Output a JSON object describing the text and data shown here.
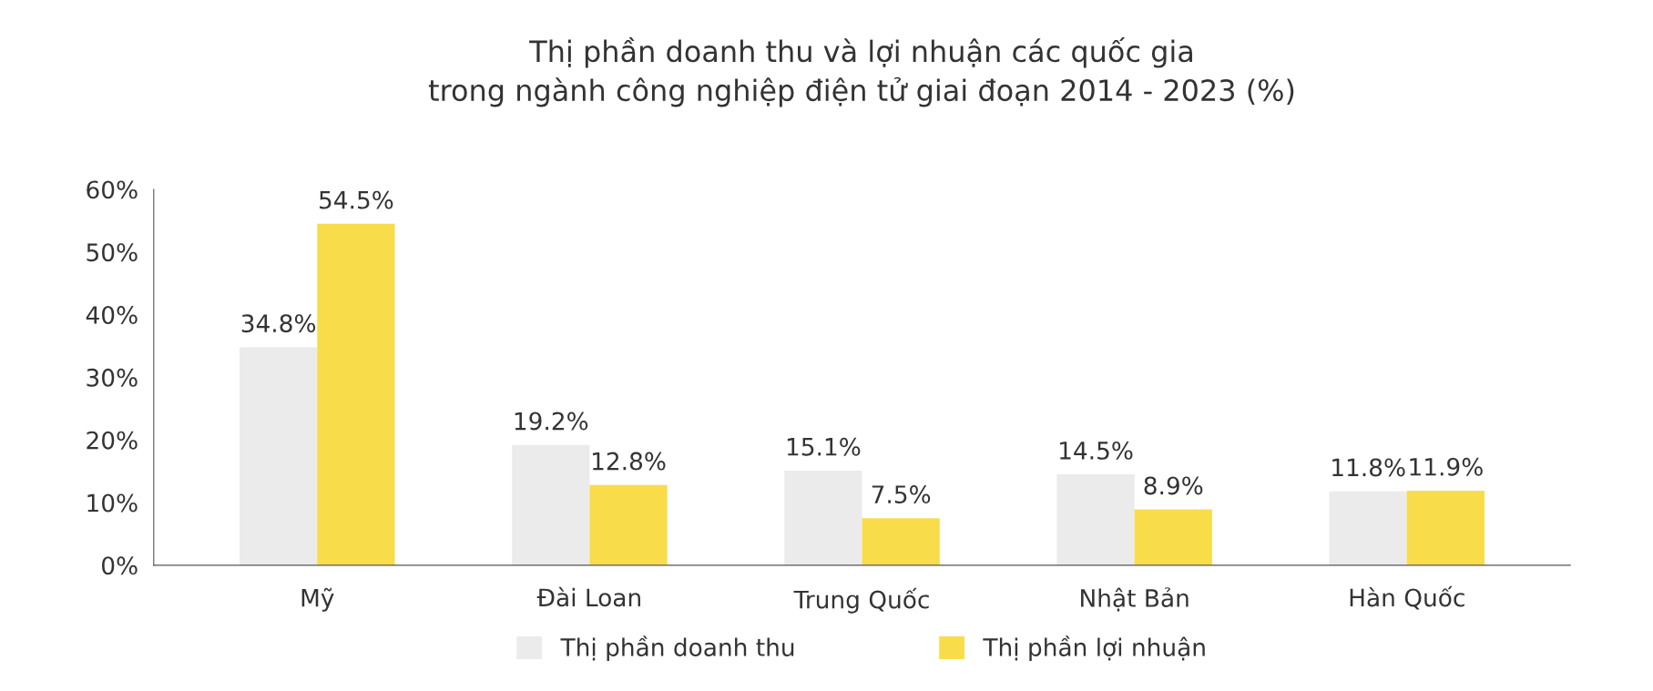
{
  "chart_data": {
    "type": "bar",
    "title": "Thị phần doanh thu và lợi nhuận các quốc gia\ntrong ngành công nghiệp điện tử giai đoạn 2014 - 2023 (%)",
    "categories": [
      "Mỹ",
      "Đài Loan",
      "Trung Quốc",
      "Nhật Bản",
      "Hàn Quốc"
    ],
    "series": [
      {
        "name": "Thị phần doanh thu",
        "color": "#ebebeb",
        "values": [
          34.8,
          19.2,
          15.1,
          14.5,
          11.8
        ],
        "value_labels": [
          "34.8%",
          "19.2%",
          "15.1%",
          "14.5%",
          "11.8%"
        ]
      },
      {
        "name": "Thị phần lợi nhuận",
        "color": "#f9dc4a",
        "values": [
          54.5,
          12.8,
          7.5,
          8.9,
          11.9
        ],
        "value_labels": [
          "54.5%",
          "12.8%",
          "7.5%",
          "8.9%",
          "11.9%"
        ]
      }
    ],
    "ylim": [
      0,
      60
    ],
    "yticks": [
      {
        "value": 0,
        "label": "0%"
      },
      {
        "value": 10,
        "label": "10%"
      },
      {
        "value": 20,
        "label": "20%"
      },
      {
        "value": 30,
        "label": "30%"
      },
      {
        "value": 40,
        "label": "40%"
      },
      {
        "value": 50,
        "label": "50%"
      },
      {
        "value": 60,
        "label": "60%"
      }
    ],
    "grid": false,
    "legend": "bottom"
  }
}
